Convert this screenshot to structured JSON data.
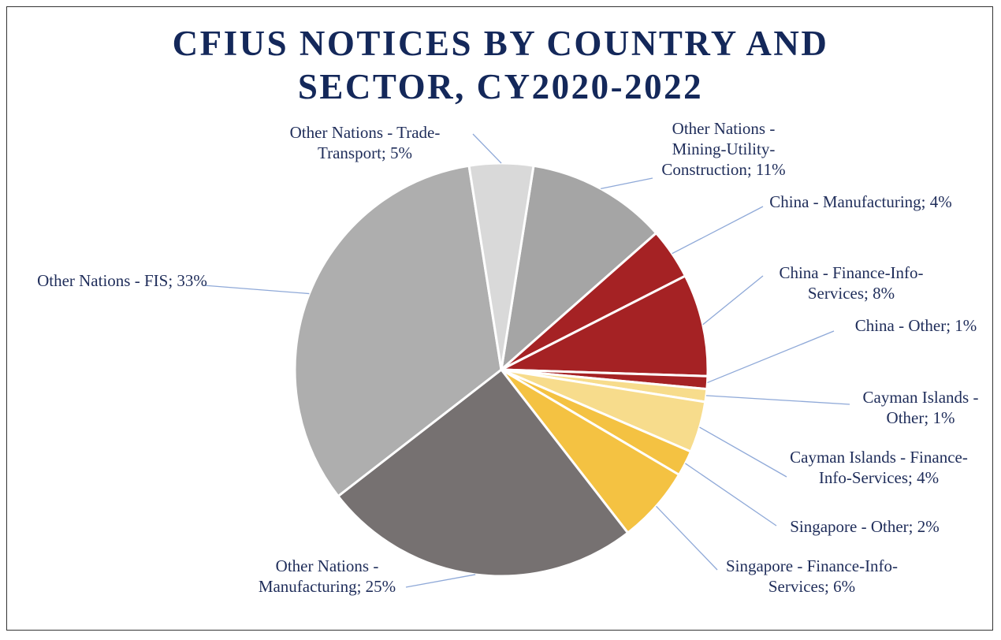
{
  "chart_data": {
    "type": "pie",
    "title": "CFIUS NOTICES BY COUNTRY AND SECTOR, CY2020-2022",
    "values": [
      11,
      4,
      8,
      1,
      1,
      4,
      2,
      6,
      25,
      33,
      5
    ],
    "value_labels": [
      "Other Nations - Mining-Utility-Construction; 11%",
      "China - Manufacturing; 4%",
      "China - Finance-Info-Services; 8%",
      "China - Other; 1%",
      "Cayman Islands - Other; 1%",
      "Cayman Islands - Finance-Info-Services; 4%",
      "Singapore - Other; 2%",
      "Singapore - Finance-Info-Services; 6%",
      "Other Nations - Manufacturing; 25%",
      "Other Nations - FIS; 33%",
      "Other Nations - Trade-Transport; 5%"
    ],
    "colors": [
      "#a5a5a5",
      "#a52224",
      "#a52224",
      "#a52224",
      "#f7dc8c",
      "#f7dc8c",
      "#f4c242",
      "#f4c242",
      "#767171",
      "#aeaeae",
      "#d9d9d9"
    ]
  }
}
